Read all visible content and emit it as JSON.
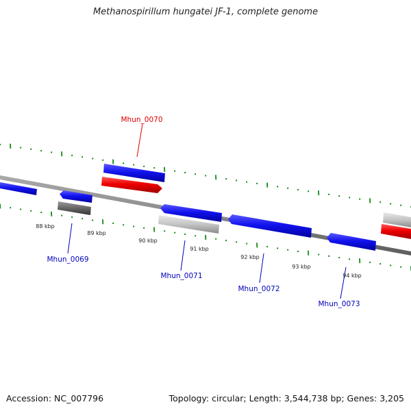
{
  "title": "Methanospirillum hungatei JF-1, complete genome",
  "footer": {
    "accession": "Accession: NC_007796",
    "stats": "Topology: circular; Length: 3,544,738 bp; Genes: 3,205"
  },
  "scale_labels": [
    "88 kbp",
    "89 kbp",
    "90 kbp",
    "91 kbp",
    "92 kbp",
    "93 kbp",
    "94 kbp"
  ],
  "gene_labels": [
    {
      "name": "Mhun_0070",
      "color": "#dd0000"
    },
    {
      "name": "Mhun_0069",
      "color": "#0000bb"
    },
    {
      "name": "Mhun_0071",
      "color": "#0000bb"
    },
    {
      "name": "Mhun_0072",
      "color": "#0000bb"
    },
    {
      "name": "Mhun_0073",
      "color": "#0000bb"
    }
  ],
  "colors": {
    "cds": "#1010ee",
    "rna_red": "#ee0000",
    "gray_light": "#bbbbbb",
    "gray_dark": "#666666",
    "backbone": "#888888",
    "tick": "#138a13"
  }
}
